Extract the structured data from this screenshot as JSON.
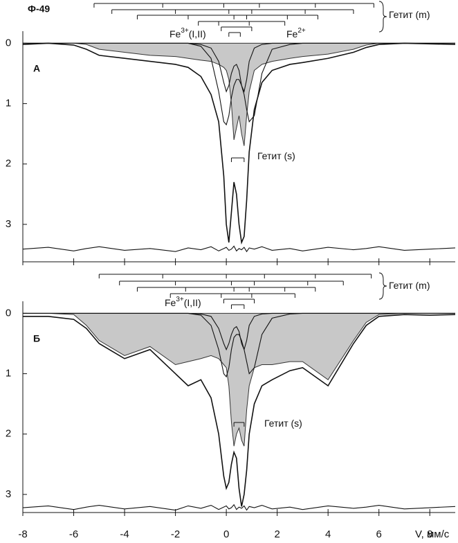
{
  "chart_data": [
    {
      "type": "line",
      "title": "Ф-49",
      "panel_label": "А",
      "x": [
        -8,
        -7,
        -6,
        -5.5,
        -5,
        -4,
        -3,
        -2,
        -1.5,
        -1,
        -0.6,
        -0.3,
        -0.1,
        0,
        0.1,
        0.2,
        0.3,
        0.4,
        0.5,
        0.6,
        0.7,
        0.8,
        0.9,
        1.1,
        1.4,
        1.8,
        2.5,
        3,
        4,
        5,
        5.5,
        6,
        7,
        8,
        9
      ],
      "series": [
        {
          "style": "area",
          "color": "#c8c8c8",
          "values": [
            0,
            0,
            0,
            0.02,
            0.1,
            0.15,
            0.2,
            0.22,
            0.25,
            0.28,
            0.3,
            0.35,
            0.4,
            0.45,
            0.6,
            1.0,
            1.6,
            1.4,
            1.2,
            1.5,
            1.7,
            1.2,
            0.8,
            0.45,
            0.35,
            0.3,
            0.25,
            0.22,
            0.18,
            0.1,
            0.03,
            0,
            0,
            0,
            0
          ]
        },
        {
          "style": "line",
          "color": "#111111",
          "values": [
            0.02,
            0,
            0.03,
            0.1,
            0.2,
            0.25,
            0.3,
            0.35,
            0.4,
            0.55,
            0.85,
            1.3,
            2.2,
            3.0,
            3.3,
            2.8,
            2.3,
            2.5,
            3.0,
            3.3,
            3.2,
            2.6,
            1.8,
            1.1,
            0.65,
            0.45,
            0.35,
            0.32,
            0.25,
            0.15,
            0.07,
            0.02,
            0,
            0.01,
            0.02
          ]
        },
        {
          "style": "line",
          "color": "#111111",
          "values": [
            0,
            0,
            0,
            0,
            0,
            0,
            0,
            0,
            0,
            0.05,
            0.25,
            0.8,
            1.3,
            1.35,
            1.2,
            0.9,
            0.7,
            0.6,
            0.6,
            0.7,
            0.85,
            1.1,
            1.3,
            1.2,
            0.5,
            0.1,
            0.02,
            0,
            0,
            0,
            0,
            0,
            0,
            0,
            0
          ]
        },
        {
          "style": "line",
          "color": "#111111",
          "values": [
            0,
            0,
            0,
            0,
            0,
            0,
            0,
            0,
            0,
            0.02,
            0.08,
            0.3,
            0.65,
            0.8,
            0.7,
            0.5,
            0.38,
            0.35,
            0.45,
            0.7,
            0.8,
            0.6,
            0.3,
            0.08,
            0.02,
            0,
            0,
            0,
            0,
            0,
            0,
            0,
            0,
            0,
            0
          ]
        },
        {
          "style": "line",
          "color": "#111111",
          "values": [
            3.41,
            3.38,
            3.44,
            3.4,
            3.37,
            3.43,
            3.4,
            3.45,
            3.39,
            3.42,
            3.37,
            3.44,
            3.4,
            3.38,
            3.43,
            3.41,
            3.36,
            3.44,
            3.4,
            3.42,
            3.38,
            3.45,
            3.39,
            3.41,
            3.37,
            3.43,
            3.4,
            3.44,
            3.38,
            3.42,
            3.4,
            3.37,
            3.43,
            3.41,
            3.39
          ]
        }
      ],
      "xlim": [
        -8,
        9
      ],
      "xticks": [
        -8,
        -6,
        -4,
        -2,
        0,
        2,
        4,
        6,
        8
      ],
      "xtick_labels": false,
      "ylim": [
        -0.2,
        3.62
      ],
      "yticks": [
        0,
        1,
        2,
        3
      ],
      "sticks": [
        [
          -5.2,
          -2.5,
          -0.1,
          1.3,
          3.5,
          5.8
        ],
        [
          -4.5,
          -2.0,
          0.1,
          1.0,
          3.1,
          5.0
        ],
        [
          -3.5,
          -1.5,
          0.3,
          0.8,
          2.4,
          3.6
        ],
        [
          -1.1,
          -0.3,
          0.9,
          2.3
        ],
        [
          -0.2,
          1.0
        ],
        [
          0.1,
          0.55
        ],
        [
          0.2,
          0.7
        ]
      ],
      "annotations": [
        {
          "text": "Гетит (m)"
        },
        {
          "text": "Fe",
          "sup": "3+",
          "tail": "(I,II)"
        },
        {
          "text": "Fe",
          "sup": "2+"
        },
        {
          "text": "Гетит (s)"
        }
      ]
    },
    {
      "type": "line",
      "panel_label": "Б",
      "xlabel": "V, мм/с",
      "x": [
        -8,
        -7,
        -6,
        -5.5,
        -5,
        -4,
        -3,
        -2,
        -1.5,
        -1,
        -0.6,
        -0.3,
        -0.1,
        0,
        0.1,
        0.2,
        0.3,
        0.4,
        0.5,
        0.6,
        0.7,
        0.8,
        0.9,
        1.1,
        1.4,
        1.8,
        2.5,
        3,
        4,
        5,
        5.5,
        6,
        7,
        8,
        9
      ],
      "series": [
        {
          "style": "area",
          "color": "#c8c8c8",
          "values": [
            0,
            0,
            0.02,
            0.2,
            0.45,
            0.7,
            0.55,
            0.85,
            0.8,
            0.75,
            0.7,
            0.75,
            0.85,
            0.9,
            1.2,
            1.8,
            2.2,
            2.0,
            1.9,
            2.1,
            2.2,
            1.6,
            1.2,
            0.9,
            0.85,
            0.85,
            0.8,
            0.8,
            1.1,
            0.45,
            0.15,
            0.02,
            0,
            0,
            0
          ]
        },
        {
          "style": "line",
          "color": "#111111",
          "values": [
            0.05,
            0.05,
            0.1,
            0.25,
            0.5,
            0.75,
            0.6,
            1.0,
            1.2,
            1.1,
            1.4,
            2.0,
            2.7,
            2.9,
            2.8,
            2.5,
            2.3,
            2.4,
            2.9,
            3.2,
            3.0,
            2.6,
            2.0,
            1.5,
            1.2,
            1.1,
            0.95,
            0.9,
            1.2,
            0.5,
            0.2,
            0.05,
            0.02,
            0.03,
            0.02
          ]
        },
        {
          "style": "line",
          "color": "#111111",
          "values": [
            0,
            0,
            0,
            0,
            0,
            0,
            0,
            0,
            0,
            0.03,
            0.2,
            0.6,
            1.0,
            1.05,
            0.9,
            0.6,
            0.4,
            0.35,
            0.35,
            0.45,
            0.6,
            0.8,
            1.0,
            0.9,
            0.35,
            0.08,
            0.01,
            0,
            0,
            0,
            0,
            0,
            0,
            0,
            0
          ]
        },
        {
          "style": "line",
          "color": "#111111",
          "values": [
            0,
            0,
            0,
            0,
            0,
            0,
            0,
            0,
            0,
            0.01,
            0.05,
            0.25,
            0.5,
            0.6,
            0.5,
            0.35,
            0.25,
            0.22,
            0.3,
            0.5,
            0.6,
            0.45,
            0.2,
            0.05,
            0.01,
            0,
            0,
            0,
            0,
            0,
            0,
            0,
            0,
            0,
            0
          ]
        },
        {
          "style": "line",
          "color": "#111111",
          "values": [
            3.22,
            3.19,
            3.25,
            3.21,
            3.18,
            3.24,
            3.2,
            3.26,
            3.19,
            3.23,
            3.18,
            3.25,
            3.21,
            3.19,
            3.24,
            3.22,
            3.17,
            3.25,
            3.21,
            3.23,
            3.19,
            3.26,
            3.2,
            3.22,
            3.18,
            3.24,
            3.21,
            3.25,
            3.19,
            3.23,
            3.21,
            3.18,
            3.24,
            3.22,
            3.2
          ]
        }
      ],
      "xlim": [
        -8,
        9
      ],
      "xticks": [
        -8,
        -6,
        -4,
        -2,
        0,
        2,
        4,
        6,
        8
      ],
      "xtick_labels": true,
      "ylim": [
        -0.2,
        3.3
      ],
      "yticks": [
        0,
        1,
        2,
        3
      ],
      "sticks": [
        [
          -5.0,
          -2.5,
          0,
          1.5,
          3.5,
          5.7
        ],
        [
          -4.2,
          -2.0,
          0.2,
          1.1,
          3.2,
          4.6
        ],
        [
          -3.5,
          -1.6,
          0.3,
          0.9,
          2.3,
          3.5
        ],
        [
          -2.2,
          -0.2,
          1.0,
          2.7
        ],
        [
          -0.1,
          1.1
        ],
        [
          0.2,
          0.7
        ],
        [
          0.3,
          0.7
        ]
      ],
      "annotations": [
        {
          "text": "Гетит (m)"
        },
        {
          "text": "Fe",
          "sup": "3+",
          "tail": "(I,II)"
        },
        {
          "text": "Гетит (s)"
        }
      ]
    }
  ]
}
